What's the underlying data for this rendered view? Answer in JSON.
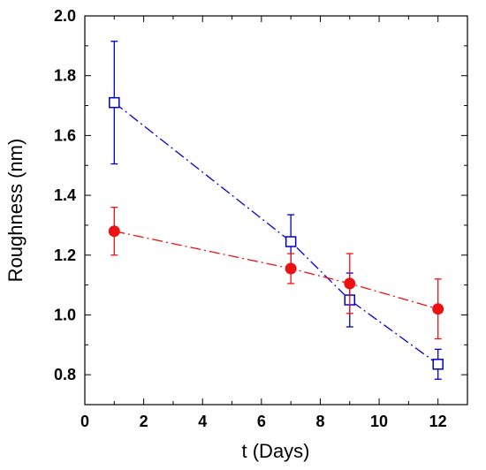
{
  "chart_data": {
    "type": "scatter",
    "xlabel": "t  (Days)",
    "ylabel": "Roughness (nm)",
    "xlim": [
      0,
      13
    ],
    "ylim": [
      0.7,
      2.0
    ],
    "xticks": [
      0,
      2,
      4,
      6,
      8,
      10,
      12
    ],
    "yticks": [
      0.8,
      1.0,
      1.2,
      1.4,
      1.6,
      1.8,
      2.0
    ],
    "xtick_labels": [
      "0",
      "2",
      "4",
      "6",
      "8",
      "10",
      "12"
    ],
    "ytick_labels": [
      "0.8",
      "1.0",
      "1.2",
      "1.4",
      "1.6",
      "1.8",
      "2.0"
    ],
    "grid": false,
    "series": [
      {
        "marker": "open-square",
        "line": "dash-dot",
        "color": "#0000cc",
        "x": [
          1,
          7,
          9,
          12
        ],
        "y": [
          1.71,
          1.245,
          1.05,
          0.835
        ],
        "yerr": [
          0.205,
          0.09,
          0.09,
          0.05
        ]
      },
      {
        "marker": "filled-circle",
        "line": "dash-dot",
        "color": "#ee1111",
        "x": [
          1,
          7,
          9,
          12
        ],
        "y": [
          1.28,
          1.155,
          1.105,
          1.02
        ],
        "yerr": [
          0.08,
          0.05,
          0.1,
          0.1
        ]
      }
    ]
  }
}
